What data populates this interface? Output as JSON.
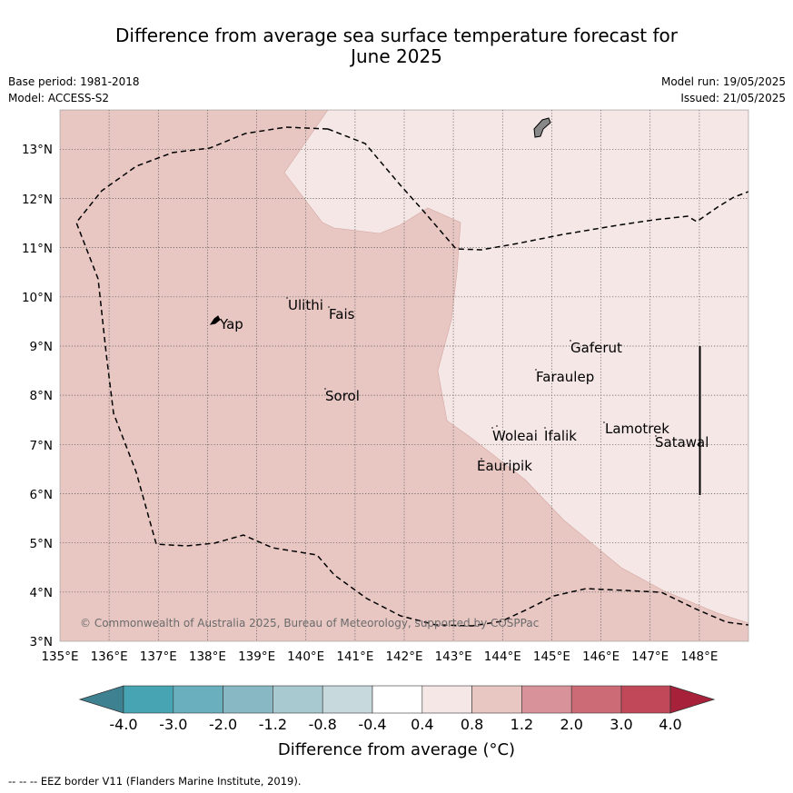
{
  "title": {
    "line1": "Difference from average sea surface temperature forecast for",
    "line2": "June 2025"
  },
  "meta": {
    "base_period": "Base period: 1981-2018",
    "model": "Model: ACCESS-S2",
    "model_run": "Model run: 19/05/2025",
    "issued": "Issued: 21/05/2025"
  },
  "map": {
    "lon_ticks": [
      "135°E",
      "136°E",
      "137°E",
      "138°E",
      "139°E",
      "140°E",
      "141°E",
      "142°E",
      "143°E",
      "144°E",
      "145°E",
      "146°E",
      "147°E",
      "148°E"
    ],
    "lat_ticks": [
      "3°N",
      "4°N",
      "5°N",
      "6°N",
      "7°N",
      "8°N",
      "9°N",
      "10°N",
      "11°N",
      "12°N",
      "13°N"
    ],
    "extent": {
      "lon_min": 135,
      "lon_max": 149,
      "lat_min": 3,
      "lat_max": 13.8
    },
    "fill_colors": {
      "band_0_8_to_1_2": "#e8c7c3",
      "band_0_4_to_0_8": "#f4e7e5"
    },
    "places": [
      {
        "name": "Ulithi",
        "lon": 139.8,
        "lat": 9.9
      },
      {
        "name": "Fais",
        "lon": 140.5,
        "lat": 9.75
      },
      {
        "name": "Yap",
        "lon": 138.15,
        "lat": 9.5
      },
      {
        "name": "Gaferut",
        "lon": 145.4,
        "lat": 9.2
      },
      {
        "name": "Faraulep",
        "lon": 144.6,
        "lat": 8.6
      },
      {
        "name": "Sorol",
        "lon": 140.4,
        "lat": 8.15
      },
      {
        "name": "Lamotrek",
        "lon": 146.05,
        "lat": 7.45
      },
      {
        "name": "Woleai",
        "lon": 143.9,
        "lat": 7.35
      },
      {
        "name": "Ifalik",
        "lon": 144.45,
        "lat": 7.25
      },
      {
        "name": "Satawal",
        "lon": 147.05,
        "lat": 7.35
      },
      {
        "name": "Eauripik",
        "lon": 143.05,
        "lat": 6.7
      }
    ],
    "copyright": "© Commonwealth of Australia 2025, Bureau of Meteorology, supported by COSPPac"
  },
  "colorbar": {
    "tick_labels": [
      "-4.0",
      "-3.0",
      "-2.0",
      "-1.2",
      "-0.8",
      "-0.4",
      "0.4",
      "0.8",
      "1.2",
      "2.0",
      "3.0",
      "4.0"
    ],
    "colors": [
      "#47a4b3",
      "#6aafbd",
      "#88b8c4",
      "#a8c9cf",
      "#c8d9dd",
      "#ffffff",
      "#f4e7e5",
      "#e8c7c3",
      "#d8939a",
      "#cc6b76",
      "#c04858"
    ],
    "under_color": "#3e8190",
    "over_color": "#a8213a",
    "title": "Difference from average (°C)"
  },
  "footer": "--  --  -- EEZ border V11 (Flanders Marine Institute, 2019)."
}
